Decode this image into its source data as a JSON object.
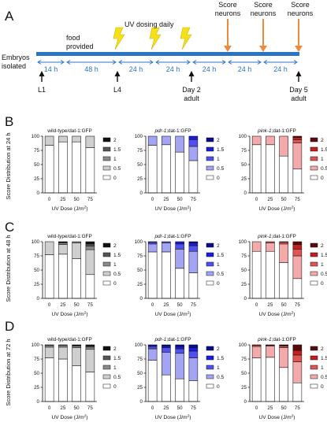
{
  "panel_labels": [
    "A",
    "B",
    "C",
    "D"
  ],
  "timeline": {
    "start_label_line1": "Embryos",
    "start_label_line2": "isolated",
    "food_line1": "food",
    "food_line2": "provided",
    "uv_label": "UV dosing daily",
    "score_line1": "Score",
    "score_line2": "neurons",
    "intervals": [
      "14 h",
      "48 h",
      "24 h",
      "24 h",
      "24 h",
      "24 h",
      "24 h"
    ],
    "stage_labels": {
      "l1": "L1",
      "l4": "L4",
      "day2_line1": "Day 2",
      "day2_line2": "adult",
      "day5_line1": "Day 5",
      "day5_line2": "adult"
    },
    "colors": {
      "bar": "#2b73c4",
      "arrow": "#ee8a3c",
      "lightning": "#f5e11a"
    }
  },
  "shared": {
    "x_axis_label": "UV Dose (J/m²)",
    "row_ylabels": [
      "Score Distribution at 24 h",
      "Score Distribution at 48 h",
      "Score Distribution at 72 h"
    ],
    "legend_labels": [
      "2",
      "1.5",
      "1",
      "0.5",
      "0"
    ],
    "palettes": {
      "wt": [
        "#111111",
        "#555555",
        "#8a8a8a",
        "#cfcfcf",
        "#ffffff"
      ],
      "pdr": [
        "#0a0a8c",
        "#1a1ae0",
        "#5050ee",
        "#a4a4f4",
        "#ffffff"
      ],
      "pink": [
        "#5a0a0a",
        "#c41e1e",
        "#e05454",
        "#f4aaaa",
        "#ffffff"
      ]
    }
  },
  "chart_data": [
    {
      "panel": "B",
      "title": "wild-type/dat-1:GFP",
      "title_italic": "",
      "title_rest": "",
      "palette": "wt",
      "type": "bar",
      "stacked": true,
      "categories": [
        "0",
        "25",
        "50",
        "75"
      ],
      "ylim": [
        0,
        100
      ],
      "yticks": [
        0,
        25,
        50,
        75,
        100
      ],
      "xlabel": "UV Dose (J/m²)",
      "ylabel": "Score Distribution at 24 h",
      "series": [
        {
          "name": "0",
          "values": [
            84,
            90,
            90,
            80
          ]
        },
        {
          "name": "0.5",
          "values": [
            16,
            10,
            10,
            20
          ]
        },
        {
          "name": "1",
          "values": [
            0,
            0,
            0,
            0
          ]
        },
        {
          "name": "1.5",
          "values": [
            0,
            0,
            0,
            0
          ]
        },
        {
          "name": "2",
          "values": [
            0,
            0,
            0,
            0
          ]
        }
      ]
    },
    {
      "panel": "B",
      "title": "",
      "title_italic": "pdr-1",
      "title_rest": ";dat-1:GFP",
      "palette": "pdr",
      "type": "bar",
      "stacked": true,
      "categories": [
        "0",
        "25",
        "50",
        "75"
      ],
      "ylim": [
        0,
        100
      ],
      "yticks": [
        0,
        25,
        50,
        75,
        100
      ],
      "xlabel": "UV Dose (J/m²)",
      "ylabel": "",
      "series": [
        {
          "name": "0",
          "values": [
            84,
            85,
            72,
            57
          ]
        },
        {
          "name": "0.5",
          "values": [
            16,
            15,
            28,
            25
          ]
        },
        {
          "name": "1",
          "values": [
            0,
            0,
            0,
            12
          ]
        },
        {
          "name": "1.5",
          "values": [
            0,
            0,
            0,
            6
          ]
        },
        {
          "name": "2",
          "values": [
            0,
            0,
            0,
            0
          ]
        }
      ]
    },
    {
      "panel": "B",
      "title": "",
      "title_italic": "pink-1",
      "title_rest": ";dat-1:GFP",
      "palette": "pink",
      "type": "bar",
      "stacked": true,
      "categories": [
        "0",
        "25",
        "50",
        "75"
      ],
      "ylim": [
        0,
        100
      ],
      "yticks": [
        0,
        25,
        50,
        75,
        100
      ],
      "xlabel": "UV Dose (J/m²)",
      "ylabel": "",
      "series": [
        {
          "name": "0",
          "values": [
            85,
            85,
            65,
            42
          ]
        },
        {
          "name": "0.5",
          "values": [
            15,
            15,
            35,
            46
          ]
        },
        {
          "name": "1",
          "values": [
            0,
            0,
            0,
            6
          ]
        },
        {
          "name": "1.5",
          "values": [
            0,
            0,
            0,
            4
          ]
        },
        {
          "name": "2",
          "values": [
            0,
            0,
            0,
            2
          ]
        }
      ]
    },
    {
      "panel": "C",
      "title": "wild-type/dat-1:GFP",
      "title_italic": "",
      "title_rest": "",
      "palette": "wt",
      "type": "bar",
      "stacked": true,
      "categories": [
        "0",
        "25",
        "50",
        "75"
      ],
      "ylim": [
        0,
        100
      ],
      "yticks": [
        0,
        25,
        50,
        75,
        100
      ],
      "xlabel": "UV Dose (J/m²)",
      "ylabel": "Score Distribution at 48 h",
      "series": [
        {
          "name": "0",
          "values": [
            77,
            78,
            70,
            42
          ]
        },
        {
          "name": "0.5",
          "values": [
            23,
            17,
            28,
            44
          ]
        },
        {
          "name": "1",
          "values": [
            0,
            3,
            2,
            6
          ]
        },
        {
          "name": "1.5",
          "values": [
            0,
            1,
            0,
            4
          ]
        },
        {
          "name": "2",
          "values": [
            0,
            1,
            0,
            4
          ]
        }
      ]
    },
    {
      "panel": "C",
      "title": "",
      "title_italic": "pdr-1",
      "title_rest": ";dat-1:GFP",
      "palette": "pdr",
      "type": "bar",
      "stacked": true,
      "categories": [
        "0",
        "25",
        "50",
        "75"
      ],
      "ylim": [
        0,
        100
      ],
      "yticks": [
        0,
        25,
        50,
        75,
        100
      ],
      "xlabel": "UV Dose (J/m²)",
      "ylabel": "",
      "series": [
        {
          "name": "0",
          "values": [
            82,
            82,
            53,
            45
          ]
        },
        {
          "name": "0.5",
          "values": [
            14,
            16,
            34,
            38
          ]
        },
        {
          "name": "1",
          "values": [
            3,
            2,
            9,
            10
          ]
        },
        {
          "name": "1.5",
          "values": [
            1,
            0,
            4,
            5
          ]
        },
        {
          "name": "2",
          "values": [
            0,
            0,
            0,
            2
          ]
        }
      ]
    },
    {
      "panel": "C",
      "title": "",
      "title_italic": "pink-1",
      "title_rest": ";dat-1:GFP",
      "palette": "pink",
      "type": "bar",
      "stacked": true,
      "categories": [
        "0",
        "25",
        "50",
        "75"
      ],
      "ylim": [
        0,
        100
      ],
      "yticks": [
        0,
        25,
        50,
        75,
        100
      ],
      "xlabel": "UV Dose (J/m²)",
      "ylabel": "",
      "series": [
        {
          "name": "0",
          "values": [
            83,
            83,
            63,
            35
          ]
        },
        {
          "name": "0.5",
          "values": [
            17,
            15,
            33,
            40
          ]
        },
        {
          "name": "1",
          "values": [
            0,
            2,
            3,
            12
          ]
        },
        {
          "name": "1.5",
          "values": [
            0,
            0,
            1,
            8
          ]
        },
        {
          "name": "2",
          "values": [
            0,
            0,
            0,
            5
          ]
        }
      ]
    },
    {
      "panel": "D",
      "title": "wild-type/dat-1:GFP",
      "title_italic": "",
      "title_rest": "",
      "palette": "wt",
      "type": "bar",
      "stacked": true,
      "categories": [
        "0",
        "25",
        "50",
        "75"
      ],
      "ylim": [
        0,
        100
      ],
      "yticks": [
        0,
        25,
        50,
        75,
        100
      ],
      "xlabel": "UV Dose (J/m²)",
      "ylabel": "Score Distribution at 72 h",
      "series": [
        {
          "name": "0",
          "values": [
            77,
            75,
            63,
            52
          ]
        },
        {
          "name": "0.5",
          "values": [
            19,
            21,
            32,
            40
          ]
        },
        {
          "name": "1",
          "values": [
            3,
            3,
            3,
            4
          ]
        },
        {
          "name": "1.5",
          "values": [
            1,
            1,
            1,
            2
          ]
        },
        {
          "name": "2",
          "values": [
            0,
            0,
            1,
            2
          ]
        }
      ]
    },
    {
      "panel": "D",
      "title": "",
      "title_italic": "pdr-1",
      "title_rest": ";dat-1:GFP",
      "palette": "pdr",
      "type": "bar",
      "stacked": true,
      "categories": [
        "0",
        "25",
        "50",
        "75"
      ],
      "ylim": [
        0,
        100
      ],
      "yticks": [
        0,
        25,
        50,
        75,
        100
      ],
      "xlabel": "UV Dose (J/m²)",
      "ylabel": "",
      "series": [
        {
          "name": "0",
          "values": [
            73,
            47,
            40,
            37
          ]
        },
        {
          "name": "0.5",
          "values": [
            20,
            40,
            45,
            40
          ]
        },
        {
          "name": "1",
          "values": [
            4,
            8,
            8,
            12
          ]
        },
        {
          "name": "1.5",
          "values": [
            2,
            3,
            4,
            6
          ]
        },
        {
          "name": "2",
          "values": [
            1,
            2,
            3,
            5
          ]
        }
      ]
    },
    {
      "panel": "D",
      "title": "",
      "title_italic": "pink-1",
      "title_rest": ";dat-1:GFP",
      "palette": "pink",
      "type": "bar",
      "stacked": true,
      "categories": [
        "0",
        "25",
        "50",
        "75"
      ],
      "ylim": [
        0,
        100
      ],
      "yticks": [
        0,
        25,
        50,
        75,
        100
      ],
      "xlabel": "UV Dose (J/m²)",
      "ylabel": "",
      "series": [
        {
          "name": "0",
          "values": [
            77,
            78,
            60,
            33
          ]
        },
        {
          "name": "0.5",
          "values": [
            20,
            20,
            35,
            37
          ]
        },
        {
          "name": "1",
          "values": [
            2,
            1,
            3,
            12
          ]
        },
        {
          "name": "1.5",
          "values": [
            1,
            1,
            1,
            8
          ]
        },
        {
          "name": "2",
          "values": [
            0,
            0,
            1,
            10
          ]
        }
      ]
    }
  ]
}
